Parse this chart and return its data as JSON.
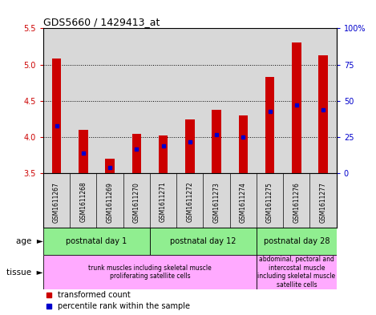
{
  "title": "GDS5660 / 1429413_at",
  "samples": [
    "GSM1611267",
    "GSM1611268",
    "GSM1611269",
    "GSM1611270",
    "GSM1611271",
    "GSM1611272",
    "GSM1611273",
    "GSM1611274",
    "GSM1611275",
    "GSM1611276",
    "GSM1611277"
  ],
  "transformed_count": [
    5.08,
    4.1,
    3.7,
    4.05,
    4.02,
    4.25,
    4.38,
    4.3,
    4.83,
    5.3,
    5.13
  ],
  "percentile_rank": [
    33,
    14,
    4,
    17,
    19,
    22,
    27,
    25,
    43,
    47,
    44
  ],
  "ylim_left": [
    3.5,
    5.5
  ],
  "ylim_right": [
    0,
    100
  ],
  "yticks_left": [
    3.5,
    4.0,
    4.5,
    5.0,
    5.5
  ],
  "yticks_right": [
    0,
    25,
    50,
    75,
    100
  ],
  "bar_color": "#cc0000",
  "percentile_color": "#0000cc",
  "bar_width": 0.35,
  "bg_color": "#d8d8d8",
  "age_groups": [
    {
      "label": "postnatal day 1",
      "start": 0,
      "end": 3
    },
    {
      "label": "postnatal day 12",
      "start": 4,
      "end": 7
    },
    {
      "label": "postnatal day 28",
      "start": 8,
      "end": 10
    }
  ],
  "tissue_groups": [
    {
      "label": "trunk muscles including skeletal muscle\nproliferating satellite cells",
      "start": 0,
      "end": 7
    },
    {
      "label": "abdominal, pectoral and\nintercostal muscle\nincluding skeletal muscle\nsatellite cells",
      "start": 8,
      "end": 10
    }
  ],
  "age_color": "#90ee90",
  "tissue_color": "#ffaaff",
  "left_tick_color": "#cc0000",
  "right_tick_color": "#0000cc"
}
